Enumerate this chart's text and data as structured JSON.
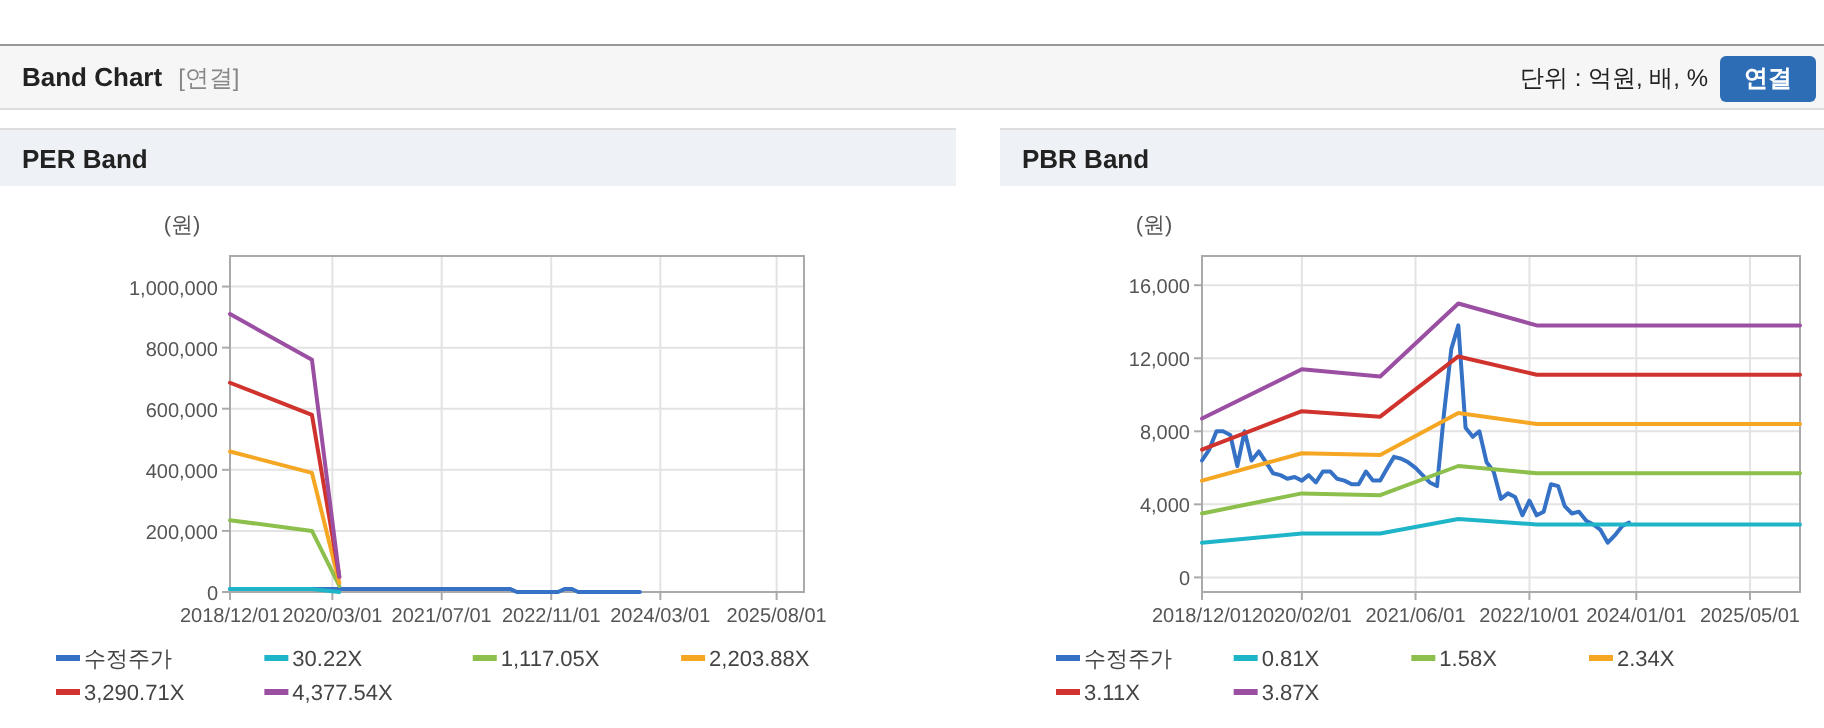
{
  "chart_data": [
    {
      "type": "other",
      "title": "Band Chart",
      "annotations": [
        "[연결]",
        "단위 : 억원, 배, %",
        "연결"
      ]
    },
    {
      "type": "line",
      "title": "PER Band",
      "ylabel": "(원)",
      "grid": true,
      "legend": "bottom",
      "marker": "none",
      "line_style": "solid",
      "xlim": [
        "2018-12-01",
        "2025-12-01"
      ],
      "ylim": [
        0,
        1100000
      ],
      "xticks": [
        {
          "value": "2018-12-01",
          "label": "2018/12/01"
        },
        {
          "value": "2020-03-01",
          "label": "2020/03/01"
        },
        {
          "value": "2021-07-01",
          "label": "2021/07/01"
        },
        {
          "value": "2022-11-01",
          "label": "2022/11/01"
        },
        {
          "value": "2024-03-01",
          "label": "2024/03/01"
        },
        {
          "value": "2025-08-01",
          "label": "2025/08/01"
        }
      ],
      "yticks": [
        0,
        {
          "value": 200000,
          "label": "200,000"
        },
        {
          "value": 400000,
          "label": "400,000"
        },
        {
          "value": 600000,
          "label": "600,000"
        },
        {
          "value": 800000,
          "label": "800,000"
        },
        {
          "value": 1000000,
          "label": "1,000,000"
        }
      ],
      "series": [
        {
          "name": "수정주가",
          "color": "#3572c6",
          "x": [
            "2018-12",
            "2019-01",
            "2019-02",
            "2019-03",
            "2019-04",
            "2019-05",
            "2019-06",
            "2019-07",
            "2019-08",
            "2019-09",
            "2019-10",
            "2019-11",
            "2019-12",
            "2020-01",
            "2020-02",
            "2020-03",
            "2020-04",
            "2020-05",
            "2020-06",
            "2020-07",
            "2020-08",
            "2020-09",
            "2020-10",
            "2020-11",
            "2020-12",
            "2021-01",
            "2021-02",
            "2021-03",
            "2021-04",
            "2021-05",
            "2021-06",
            "2021-07",
            "2021-08",
            "2021-09",
            "2021-10",
            "2021-11",
            "2021-12",
            "2022-01",
            "2022-02",
            "2022-03",
            "2022-04",
            "2022-05",
            "2022-06",
            "2022-07",
            "2022-08",
            "2022-09",
            "2022-10",
            "2022-11",
            "2022-12",
            "2023-01",
            "2023-02",
            "2023-03",
            "2023-04",
            "2023-05",
            "2023-06",
            "2023-07",
            "2023-08",
            "2023-09",
            "2023-10",
            "2023-11",
            "2023-12"
          ],
          "values": [
            10000,
            10000,
            10000,
            10000,
            10000,
            10000,
            10000,
            10000,
            10000,
            10000,
            10000,
            10000,
            10000,
            10000,
            10000,
            10000,
            10000,
            10000,
            10000,
            10000,
            10000,
            10000,
            10000,
            10000,
            10000,
            10000,
            10000,
            10000,
            10000,
            10000,
            10000,
            10000,
            10000,
            10000,
            10000,
            10000,
            10000,
            10000,
            10000,
            10000,
            10000,
            10000,
            0,
            0,
            0,
            0,
            0,
            0,
            0,
            10000,
            10000,
            0,
            0,
            0,
            0,
            0,
            0,
            0,
            0,
            0,
            0
          ]
        },
        {
          "name": "30.22X",
          "color": "#1eb5c8",
          "x": [
            "2018-12",
            "2019-12",
            "2020-04"
          ],
          "values": [
            10000,
            10000,
            0
          ]
        },
        {
          "name": "1,117.05X",
          "color": "#8cbf4b",
          "x": [
            "2018-12",
            "2019-12",
            "2020-04"
          ],
          "values": [
            235000,
            200000,
            20000
          ]
        },
        {
          "name": "2,203.88X",
          "color": "#f5a623",
          "x": [
            "2018-12",
            "2019-12",
            "2020-04"
          ],
          "values": [
            460000,
            390000,
            30000
          ]
        },
        {
          "name": "3,290.71X",
          "color": "#d0332d",
          "x": [
            "2018-12",
            "2019-12",
            "2020-04"
          ],
          "values": [
            685000,
            580000,
            50000
          ]
        },
        {
          "name": "4,377.54X",
          "color": "#9b4fa3",
          "x": [
            "2018-12",
            "2019-12",
            "2020-04"
          ],
          "values": [
            910000,
            760000,
            50000
          ]
        }
      ]
    },
    {
      "type": "line",
      "title": "PBR Band",
      "ylabel": "(원)",
      "grid": true,
      "legend": "bottom",
      "marker": "none",
      "line_style": "solid",
      "xlim": [
        "2018-12-01",
        "2025-12-01"
      ],
      "ylim": [
        -800,
        17600
      ],
      "xticks": [
        {
          "value": "2018-12-01",
          "label": "2018/12/01"
        },
        {
          "value": "2020-02-01",
          "label": "2020/02/01"
        },
        {
          "value": "2021-06-01",
          "label": "2021/06/01"
        },
        {
          "value": "2022-10-01",
          "label": "2022/10/01"
        },
        {
          "value": "2024-01-01",
          "label": "2024/01/01"
        },
        {
          "value": "2025-05-01",
          "label": "2025/05/01"
        }
      ],
      "yticks": [
        0,
        {
          "value": 4000,
          "label": "4,000"
        },
        {
          "value": 8000,
          "label": "8,000"
        },
        {
          "value": 12000,
          "label": "12,000"
        },
        {
          "value": 16000,
          "label": "16,000"
        }
      ],
      "series": [
        {
          "name": "수정주가",
          "color": "#3572c6",
          "x": [
            "2018-12",
            "2019-01",
            "2019-02",
            "2019-03",
            "2019-04",
            "2019-05",
            "2019-06",
            "2019-07",
            "2019-08",
            "2019-09",
            "2019-10",
            "2019-11",
            "2019-12",
            "2020-01",
            "2020-02",
            "2020-03",
            "2020-04",
            "2020-05",
            "2020-06",
            "2020-07",
            "2020-08",
            "2020-09",
            "2020-10",
            "2020-11",
            "2020-12",
            "2021-01",
            "2021-02",
            "2021-03",
            "2021-04",
            "2021-05",
            "2021-06",
            "2021-07",
            "2021-08",
            "2021-09",
            "2021-10",
            "2021-11",
            "2021-12",
            "2022-01",
            "2022-02",
            "2022-03",
            "2022-04",
            "2022-05",
            "2022-06",
            "2022-07",
            "2022-08",
            "2022-09",
            "2022-10",
            "2022-11",
            "2022-12",
            "2023-01",
            "2023-02",
            "2023-03",
            "2023-04",
            "2023-05",
            "2023-06",
            "2023-07",
            "2023-08",
            "2023-09",
            "2023-10",
            "2023-11",
            "2023-12"
          ],
          "values": [
            6400,
            7000,
            8000,
            8000,
            7800,
            6100,
            8000,
            6400,
            6900,
            6300,
            5700,
            5600,
            5400,
            5500,
            5300,
            5600,
            5200,
            5800,
            5800,
            5400,
            5300,
            5100,
            5100,
            5800,
            5300,
            5300,
            6000,
            6600,
            6500,
            6300,
            6000,
            5600,
            5200,
            5000,
            9000,
            12500,
            13800,
            8200,
            7700,
            8000,
            6300,
            5800,
            4300,
            4600,
            4400,
            3400,
            4200,
            3400,
            3600,
            5100,
            5000,
            3900,
            3500,
            3600,
            3100,
            2900,
            2600,
            1900,
            2300,
            2800,
            3000
          ]
        },
        {
          "name": "0.81X",
          "color": "#1eb5c8",
          "x": [
            "2018-12",
            "2020-02",
            "2021-01",
            "2021-12",
            "2022-11",
            "2025-12"
          ],
          "values": [
            1900,
            2400,
            2400,
            3200,
            2900,
            2900
          ]
        },
        {
          "name": "1.58X",
          "color": "#8cbf4b",
          "x": [
            "2018-12",
            "2020-02",
            "2021-01",
            "2021-12",
            "2022-11",
            "2025-12"
          ],
          "values": [
            3500,
            4600,
            4500,
            6100,
            5700,
            5700
          ]
        },
        {
          "name": "2.34X",
          "color": "#f5a623",
          "x": [
            "2018-12",
            "2020-02",
            "2021-01",
            "2021-12",
            "2022-11",
            "2025-12"
          ],
          "values": [
            5300,
            6800,
            6700,
            9000,
            8400,
            8400
          ]
        },
        {
          "name": "3.11X",
          "color": "#d0332d",
          "x": [
            "2018-12",
            "2020-02",
            "2021-01",
            "2021-12",
            "2022-11",
            "2025-12"
          ],
          "values": [
            7000,
            9100,
            8800,
            12100,
            11100,
            11100
          ]
        },
        {
          "name": "3.87X",
          "color": "#9b4fa3",
          "x": [
            "2018-12",
            "2020-02",
            "2021-01",
            "2021-12",
            "2022-11",
            "2025-12"
          ],
          "values": [
            8700,
            11400,
            11000,
            15000,
            13800,
            13800
          ]
        }
      ]
    }
  ]
}
